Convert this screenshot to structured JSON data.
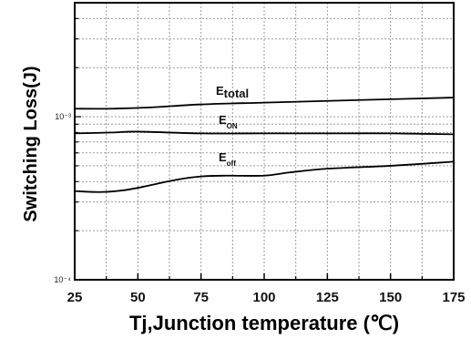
{
  "chart_data": {
    "type": "line",
    "xlabel": "Tj,Junction temperature (℃)",
    "ylabel": "Switching Loss(J)",
    "xlim": [
      25,
      175
    ],
    "ylim": [
      0.0001,
      0.005
    ],
    "y_scale": "log",
    "grid": true,
    "x_ticks": [
      "25",
      "50",
      "75",
      "100",
      "125",
      "150",
      "175"
    ],
    "y_ticks": [
      "10⁻⁴",
      "10⁻³"
    ],
    "series": [
      {
        "name": "E",
        "subscript": "total",
        "x": [
          25,
          40,
          55,
          75,
          100,
          125,
          150,
          175
        ],
        "y": [
          0.00112,
          0.00112,
          0.00114,
          0.00119,
          0.00122,
          0.00125,
          0.00128,
          0.00131
        ]
      },
      {
        "name": "E",
        "subscript": "ON",
        "x": [
          25,
          40,
          50,
          75,
          100,
          125,
          150,
          175
        ],
        "y": [
          0.00079,
          0.0008,
          0.00081,
          0.00079,
          0.00079,
          0.00079,
          0.00079,
          0.00078
        ]
      },
      {
        "name": "E",
        "subscript": "off",
        "x": [
          25,
          35,
          45,
          55,
          65,
          75,
          85,
          100,
          110,
          125,
          150,
          175
        ],
        "y": [
          0.00035,
          0.000345,
          0.000355,
          0.00038,
          0.00041,
          0.00043,
          0.000435,
          0.000435,
          0.000455,
          0.00048,
          0.0005,
          0.00053
        ]
      }
    ]
  }
}
